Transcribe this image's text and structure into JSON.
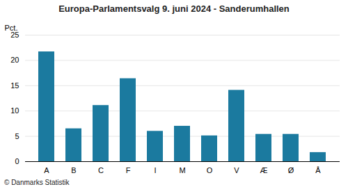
{
  "chart_data": {
    "type": "bar",
    "title": "Europa-Parlamentsvalg 9. juni 2024 - Sanderumhallen",
    "categories": [
      "A",
      "B",
      "C",
      "F",
      "I",
      "M",
      "O",
      "V",
      "Æ",
      "Ø",
      "Å"
    ],
    "values": [
      21.7,
      6.5,
      11.1,
      16.4,
      6.0,
      7.0,
      5.1,
      14.1,
      5.4,
      5.4,
      1.8
    ],
    "color": "#1b7a9f",
    "ylabel": "Pct.",
    "ylim": [
      0,
      25
    ],
    "yticks": [
      0,
      5,
      10,
      15,
      20,
      25
    ],
    "grid": true,
    "annotations": [
      "© Danmarks Statistik"
    ]
  }
}
